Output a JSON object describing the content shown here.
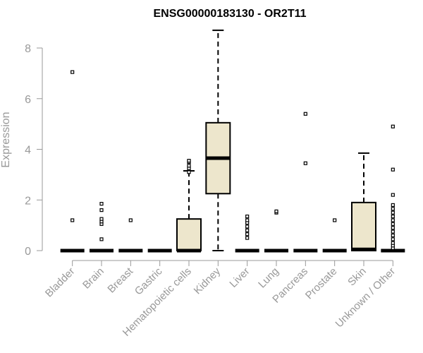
{
  "chart_data": {
    "type": "boxplot",
    "title": "ENSG00000183130 - OR2T11",
    "xlabel": "",
    "ylabel": "Expression",
    "ylim": [
      0,
      8.7
    ],
    "yticks": [
      0,
      2,
      4,
      6,
      8
    ],
    "box_fill": "#ede6cc",
    "box_stroke": "#000000",
    "axis_color": "#999999",
    "categories": [
      "Bladder",
      "Brain",
      "Breast",
      "Gastric",
      "Hematopoietic cells",
      "Kidney",
      "Liver",
      "Lung",
      "Pancreas",
      "Prostate",
      "Skin",
      "Unknown / Other"
    ],
    "boxes": [
      {
        "q1": 0,
        "median": 0,
        "q3": 0,
        "whisker_low": 0,
        "whisker_high": 0,
        "outliers": [
          1.2,
          7.05
        ]
      },
      {
        "q1": 0,
        "median": 0,
        "q3": 0,
        "whisker_low": 0,
        "whisker_high": 0,
        "outliers": [
          0.45,
          1.05,
          1.15,
          1.25,
          1.6,
          1.85
        ]
      },
      {
        "q1": 0,
        "median": 0,
        "q3": 0,
        "whisker_low": 0,
        "whisker_high": 0,
        "outliers": [
          1.2
        ]
      },
      {
        "q1": 0,
        "median": 0,
        "q3": 0,
        "whisker_low": 0,
        "whisker_high": 0,
        "outliers": []
      },
      {
        "q1": 0,
        "median": 0,
        "q3": 1.25,
        "whisker_low": 0,
        "whisker_high": 3.15,
        "outliers": [
          3.1,
          3.25,
          3.35,
          3.5,
          3.55
        ]
      },
      {
        "q1": 2.25,
        "median": 3.65,
        "q3": 5.05,
        "whisker_low": 0,
        "whisker_high": 8.7,
        "outliers": []
      },
      {
        "q1": 0,
        "median": 0,
        "q3": 0,
        "whisker_low": 0,
        "whisker_high": 0,
        "outliers": [
          0.5,
          0.65,
          0.8,
          0.95,
          1.1,
          1.2,
          1.35
        ]
      },
      {
        "q1": 0,
        "median": 0,
        "q3": 0,
        "whisker_low": 0,
        "whisker_high": 0,
        "outliers": [
          1.5,
          1.55
        ]
      },
      {
        "q1": 0,
        "median": 0,
        "q3": 0,
        "whisker_low": 0,
        "whisker_high": 0,
        "outliers": [
          3.45,
          5.4
        ]
      },
      {
        "q1": 0,
        "median": 0,
        "q3": 0,
        "whisker_low": 0,
        "whisker_high": 0,
        "outliers": [
          1.2
        ]
      },
      {
        "q1": 0,
        "median": 0.05,
        "q3": 1.9,
        "whisker_low": 0,
        "whisker_high": 3.85,
        "outliers": []
      },
      {
        "q1": 0,
        "median": 0,
        "q3": 0,
        "whisker_low": 0,
        "whisker_high": 0,
        "outliers": [
          0.1,
          0.2,
          0.3,
          0.45,
          0.6,
          0.75,
          0.9,
          1.05,
          1.2,
          1.35,
          1.5,
          1.65,
          1.8,
          2.2,
          3.2,
          4.9
        ]
      }
    ]
  }
}
